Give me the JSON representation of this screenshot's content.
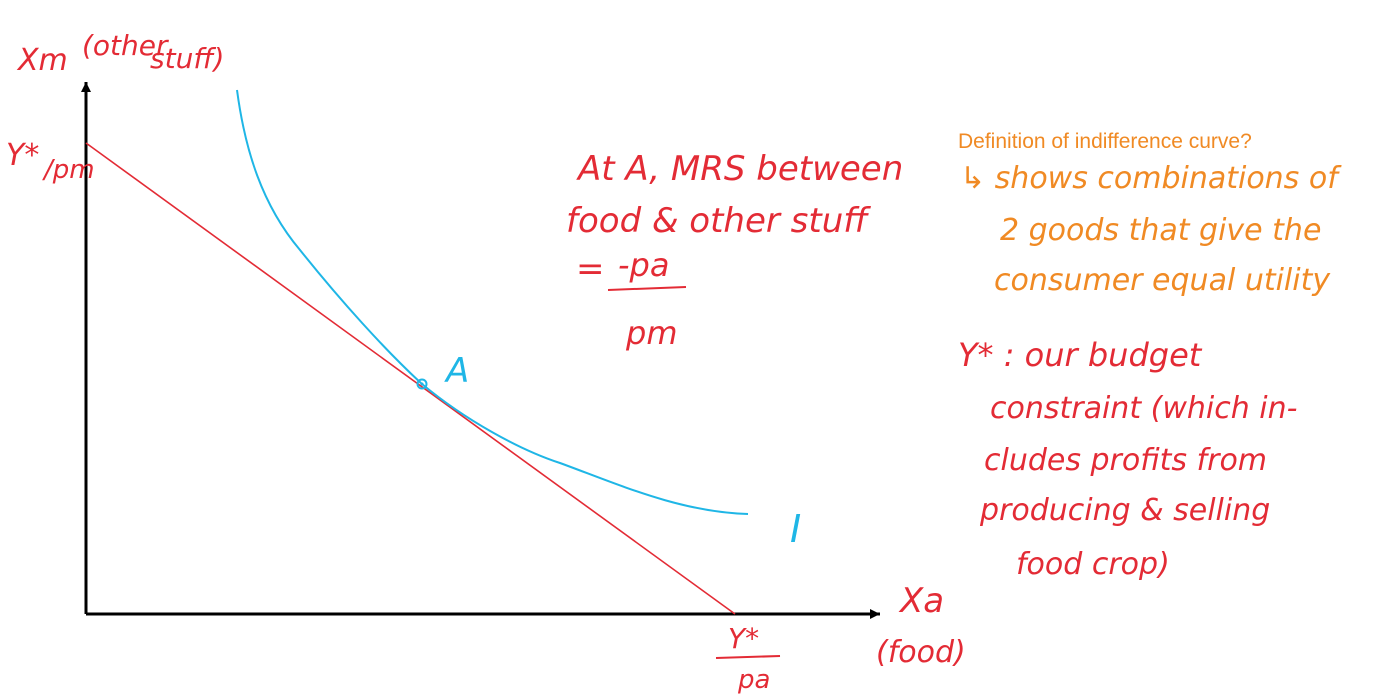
{
  "axes": {
    "y_label_main": "Xm",
    "y_label_paren_1": "(other",
    "y_label_paren_2": "stuff)",
    "x_label_main": "Xa",
    "x_label_paren": "(food)",
    "y_intercept_num": "Y*",
    "y_intercept_den": "/pm",
    "x_intercept_num": "Y*",
    "x_intercept_den": "pa"
  },
  "annotation_mrs": {
    "line1": "At A, MRS between",
    "line2": "food & other stuff",
    "eq_sign": "=",
    "numerator": "-pa",
    "denominator": "pm"
  },
  "points": {
    "tangency_label": "A"
  },
  "curves": {
    "indifference_label": "I"
  },
  "notes": {
    "heading": "Definition of indifference curve?",
    "def_line1": "↳ shows combinations of",
    "def_line2": "2 goods that give the",
    "def_line3": "consumer equal utility",
    "budget_line1": "Y* : our budget",
    "budget_line2": "constraint (which in-",
    "budget_line3": "cludes profits from",
    "budget_line4": "producing & selling",
    "budget_line5": "food crop)"
  },
  "colors": {
    "axis": "#000000",
    "budget_line": "#e32b35",
    "indifference_curve": "#1fb6e6",
    "notes": "#f08a24",
    "annotation": "#e32b35"
  }
}
